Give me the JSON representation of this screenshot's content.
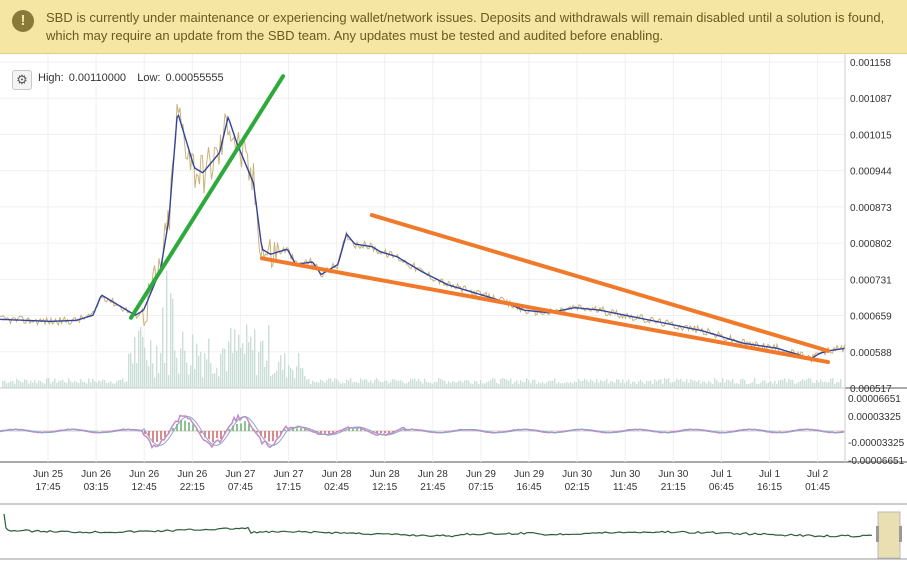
{
  "banner": {
    "icon": "warning-icon",
    "text": "SBD is currently under maintenance or experiencing wallet/network issues. Deposits and withdrawals will remain disabled until a solution is found, which may require an update from the SBD team. Any updates must be tested and audited before enabling."
  },
  "toolbar": {
    "settings_icon": "gear-icon",
    "high_label": "High:",
    "high_value": "0.00110000",
    "low_label": "Low:",
    "low_value": "0.00055555"
  },
  "colors": {
    "price": "#c9b37a",
    "ma": "#34449a",
    "green_trend": "#2eaa3c",
    "orange_trend": "#f07a2a",
    "volume": "#b9d3cb",
    "macd": "#c78bc4",
    "nav": "#2f5d3a",
    "nav_window": "#e9dfb3"
  },
  "chart_data": {
    "type": "line",
    "price_axis": {
      "ticks": [
        "0.001158",
        "0.001087",
        "0.001015",
        "0.000944",
        "0.000873",
        "0.000802",
        "0.000731",
        "0.000659",
        "0.000588",
        "0.000517"
      ],
      "range": [
        0.000517,
        0.001158
      ]
    },
    "macd_axis": {
      "ticks": [
        "0.00006651",
        "0.00003325",
        "-0.00003325",
        "-0.00006651"
      ],
      "range": [
        -6.651e-05,
        6.651e-05
      ]
    },
    "x_ticks": [
      [
        "Jun 25",
        "17:45"
      ],
      [
        "Jun 26",
        "03:15"
      ],
      [
        "Jun 26",
        "12:45"
      ],
      [
        "Jun 26",
        "22:15"
      ],
      [
        "Jun 27",
        "07:45"
      ],
      [
        "Jun 27",
        "17:15"
      ],
      [
        "Jun 28",
        "02:45"
      ],
      [
        "Jun 28",
        "12:15"
      ],
      [
        "Jun 28",
        "21:45"
      ],
      [
        "Jun 29",
        "07:15"
      ],
      [
        "Jun 29",
        "16:45"
      ],
      [
        "Jun 30",
        "02:15"
      ],
      [
        "Jun 30",
        "11:45"
      ],
      [
        "Jun 30",
        "21:15"
      ],
      [
        "Jul 1",
        "06:45"
      ],
      [
        "Jul 1",
        "16:15"
      ],
      [
        "Jul 2",
        "01:45"
      ]
    ],
    "price_series": {
      "x": [
        0,
        0.03,
        0.06,
        0.09,
        0.11,
        0.12,
        0.14,
        0.16,
        0.17,
        0.19,
        0.2,
        0.21,
        0.23,
        0.24,
        0.26,
        0.27,
        0.28,
        0.29,
        0.3,
        0.31,
        0.32,
        0.34,
        0.35,
        0.37,
        0.38,
        0.4,
        0.41,
        0.42,
        0.44,
        0.45,
        0.47,
        0.5,
        0.53,
        0.56,
        0.59,
        0.62,
        0.65,
        0.68,
        0.71,
        0.74,
        0.77,
        0.8,
        0.83,
        0.86,
        0.88,
        0.9,
        0.92,
        0.94,
        0.96,
        0.97,
        0.98,
        1.0
      ],
      "y": [
        0.000652,
        0.00065,
        0.000648,
        0.00065,
        0.00066,
        0.0007,
        0.00068,
        0.00066,
        0.00067,
        0.00075,
        0.00085,
        0.00106,
        0.00095,
        0.00094,
        0.00098,
        0.00105,
        0.001,
        0.00096,
        0.00092,
        0.00079,
        0.00078,
        0.00079,
        0.00076,
        0.000765,
        0.00074,
        0.00076,
        0.00082,
        0.0008,
        0.000795,
        0.000785,
        0.000775,
        0.000745,
        0.00072,
        0.000705,
        0.00069,
        0.00067,
        0.000665,
        0.000675,
        0.00067,
        0.00066,
        0.00065,
        0.00064,
        0.00063,
        0.000615,
        0.000605,
        0.0006,
        0.000595,
        0.000585,
        0.000575,
        0.000585,
        0.00059,
        0.000595
      ]
    },
    "trendlines": [
      {
        "color": "green_trend",
        "from": [
          0.155,
          0.000655
        ],
        "to": [
          0.335,
          0.00113
        ]
      },
      {
        "color": "orange_trend",
        "from": [
          0.31,
          0.000772
        ],
        "to": [
          0.98,
          0.000568
        ]
      },
      {
        "color": "orange_trend",
        "from": [
          0.44,
          0.000857
        ],
        "to": [
          0.98,
          0.00059
        ]
      }
    ],
    "grid": true
  }
}
